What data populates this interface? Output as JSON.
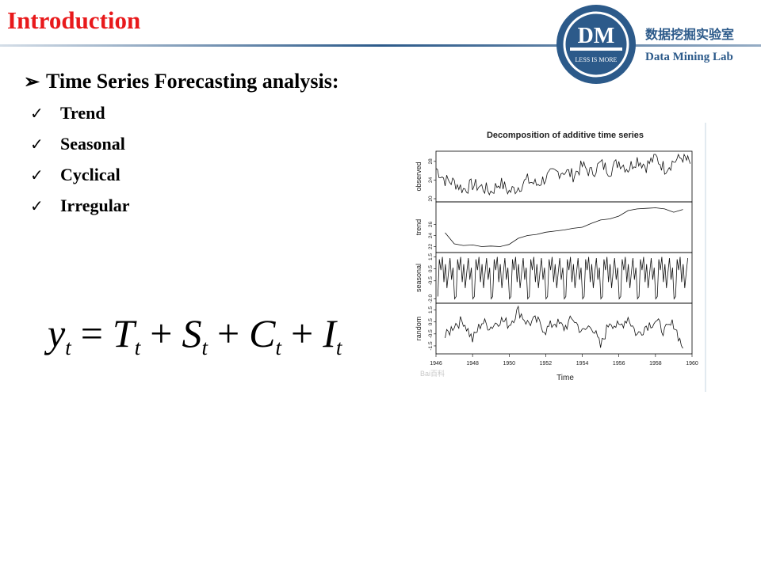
{
  "header": {
    "title": "Introduction",
    "logo_text": "DM",
    "logo_tagline": "LESS IS MORE",
    "lab_name_cn": "数据挖掘实验室",
    "lab_name_en": "Data Mining Lab"
  },
  "colors": {
    "title": "#e8191b",
    "brand": "#2c5a8a",
    "logo_ring": "#2c5a8a"
  },
  "content": {
    "heading": "Time Series Forecasting analysis:",
    "heading_icon": "arrowhead-bullet-icon",
    "bullet_icon": "checkmark-icon",
    "bullets": [
      "Trend",
      "Seasonal",
      "Cyclical",
      "Irregular"
    ],
    "formula": {
      "lhs": {
        "symbol": "y",
        "subscript": "t"
      },
      "equals": "=",
      "plus": "+",
      "terms": [
        {
          "symbol": "T",
          "subscript": "t"
        },
        {
          "symbol": "S",
          "subscript": "t"
        },
        {
          "symbol": "C",
          "subscript": "t"
        },
        {
          "symbol": "I",
          "subscript": "t"
        }
      ]
    }
  },
  "chart_data": {
    "type": "line",
    "title": "Decomposition of additive time series",
    "xlabel": "Time",
    "xlim": [
      1946,
      1960
    ],
    "x_ticks": [
      "1946",
      "1948",
      "1950",
      "1952",
      "1954",
      "1956",
      "1958",
      "1960"
    ],
    "watermark": "Bai百科",
    "panels": [
      {
        "name": "observed",
        "ylim": [
          20,
          29.5
        ],
        "y_ticks": [
          "20",
          "24",
          "28"
        ],
        "x": [
          1946.0,
          1946.5,
          1947.0,
          1947.5,
          1948.0,
          1948.5,
          1949.0,
          1949.5,
          1950.0,
          1950.5,
          1951.0,
          1951.5,
          1952.0,
          1952.5,
          1953.0,
          1953.5,
          1954.0,
          1954.5,
          1955.0,
          1955.5,
          1956.0,
          1956.5,
          1957.0,
          1957.5,
          1958.0,
          1958.5,
          1959.0,
          1959.5,
          1959.9
        ],
        "y": [
          26.5,
          24.0,
          23.5,
          22.0,
          23.0,
          22.5,
          21.5,
          23.5,
          21.5,
          22.5,
          24.0,
          23.0,
          24.5,
          25.5,
          26.0,
          25.0,
          27.0,
          25.5,
          27.5,
          26.0,
          28.0,
          26.5,
          28.5,
          27.0,
          29.0,
          26.5,
          28.0,
          29.0,
          27.5
        ],
        "amplitude": 1.5
      },
      {
        "name": "trend",
        "ylim": [
          21.5,
          29.5
        ],
        "y_ticks": [
          "22",
          "24",
          "26"
        ],
        "x": [
          1946.5,
          1947.0,
          1947.5,
          1948.0,
          1948.5,
          1949.0,
          1949.5,
          1950.0,
          1950.5,
          1951.0,
          1951.5,
          1952.0,
          1952.5,
          1953.0,
          1953.5,
          1954.0,
          1954.5,
          1955.0,
          1955.5,
          1956.0,
          1956.5,
          1957.0,
          1957.5,
          1958.0,
          1958.5,
          1959.0,
          1959.5
        ],
        "y": [
          24.5,
          22.5,
          22.2,
          22.3,
          22.0,
          22.1,
          22.0,
          22.4,
          23.5,
          24.0,
          24.2,
          24.6,
          24.8,
          25.0,
          25.3,
          25.5,
          26.2,
          26.8,
          27.0,
          27.5,
          28.5,
          28.8,
          28.9,
          29.0,
          28.8,
          28.2,
          28.7
        ]
      },
      {
        "name": "seasonal",
        "ylim": [
          -2.1,
          1.6
        ],
        "y_ticks": [
          "-2.0",
          "-0.5",
          "0.5",
          "1.5"
        ],
        "pattern": [
          -1.8,
          1.3,
          0.4,
          1.5,
          -0.6,
          0.9,
          -1.1,
          0.2,
          1.4,
          -0.4,
          0.6,
          -2.0
        ]
      },
      {
        "name": "random",
        "ylim": [
          -1.9,
          1.8
        ],
        "y_ticks": [
          "-1.5",
          "-0.5",
          "0.5",
          "1.5"
        ],
        "x": [
          1946.5,
          1947.0,
          1947.5,
          1948.0,
          1948.5,
          1949.0,
          1949.5,
          1950.0,
          1950.5,
          1951.0,
          1951.5,
          1952.0,
          1952.5,
          1953.0,
          1953.5,
          1954.0,
          1954.5,
          1955.0,
          1955.5,
          1956.0,
          1956.5,
          1957.0,
          1957.5,
          1958.0,
          1958.5,
          1959.0,
          1959.5
        ],
        "y": [
          -0.8,
          0.3,
          0.6,
          -1.0,
          0.5,
          0.1,
          0.7,
          0.3,
          1.5,
          0.4,
          0.6,
          -0.2,
          0.5,
          0.0,
          0.8,
          -0.4,
          0.3,
          -1.6,
          0.6,
          0.0,
          0.9,
          -0.6,
          0.2,
          0.6,
          -0.3,
          0.4,
          -1.7
        ],
        "amplitude": 0.5
      }
    ]
  }
}
